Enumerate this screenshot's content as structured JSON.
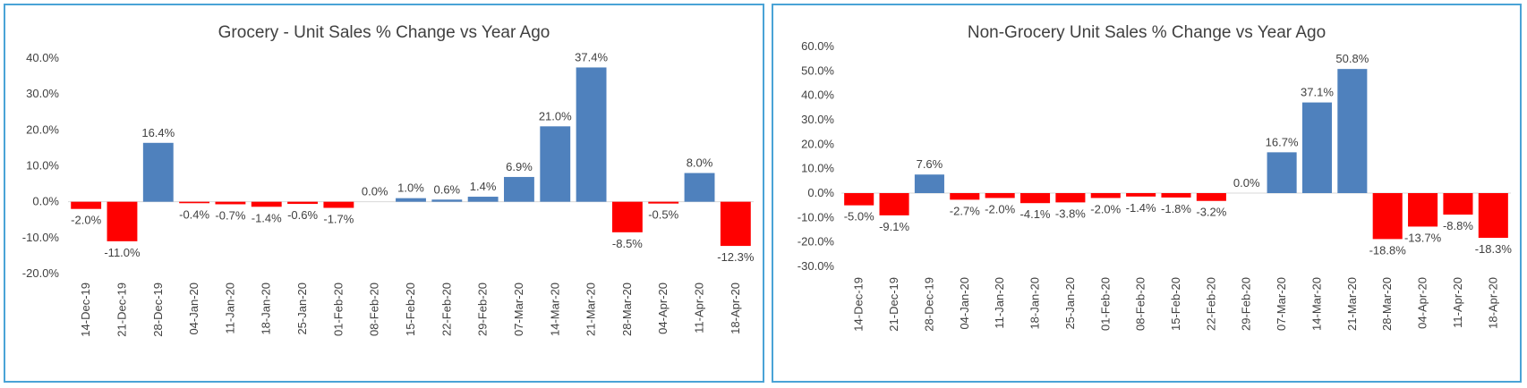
{
  "colors": {
    "positive": "#4f81bd",
    "negative": "#ff0000",
    "border": "#4aa3d6"
  },
  "chart_data": [
    {
      "type": "bar",
      "title": "Grocery - Unit Sales % Change vs Year Ago",
      "xlabel": "",
      "ylabel": "",
      "ylim": [
        -20,
        40
      ],
      "yticks": [
        -20,
        -10,
        0,
        10,
        20,
        30,
        40
      ],
      "grid": false,
      "categories": [
        "14-Dec-19",
        "21-Dec-19",
        "28-Dec-19",
        "04-Jan-20",
        "11-Jan-20",
        "18-Jan-20",
        "25-Jan-20",
        "01-Feb-20",
        "08-Feb-20",
        "15-Feb-20",
        "22-Feb-20",
        "29-Feb-20",
        "07-Mar-20",
        "14-Mar-20",
        "21-Mar-20",
        "28-Mar-20",
        "04-Apr-20",
        "11-Apr-20",
        "18-Apr-20"
      ],
      "values": [
        -2.0,
        -11.0,
        16.4,
        -0.4,
        -0.7,
        -1.4,
        -0.6,
        -1.7,
        0.0,
        1.0,
        0.6,
        1.4,
        6.9,
        21.0,
        37.4,
        -8.5,
        -0.5,
        8.0,
        -12.3
      ]
    },
    {
      "type": "bar",
      "title": "Non-Grocery Unit Sales % Change vs Year Ago",
      "xlabel": "",
      "ylabel": "",
      "ylim": [
        -30,
        60
      ],
      "yticks": [
        -30,
        -20,
        -10,
        0,
        10,
        20,
        30,
        40,
        50,
        60
      ],
      "grid": false,
      "categories": [
        "14-Dec-19",
        "21-Dec-19",
        "28-Dec-19",
        "04-Jan-20",
        "11-Jan-20",
        "18-Jan-20",
        "25-Jan-20",
        "01-Feb-20",
        "08-Feb-20",
        "15-Feb-20",
        "22-Feb-20",
        "29-Feb-20",
        "07-Mar-20",
        "14-Mar-20",
        "21-Mar-20",
        "28-Mar-20",
        "04-Apr-20",
        "11-Apr-20",
        "18-Apr-20"
      ],
      "values": [
        -5.0,
        -9.1,
        7.6,
        -2.7,
        -2.0,
        -4.1,
        -3.8,
        -2.0,
        -1.4,
        -1.8,
        -3.2,
        0.0,
        16.7,
        37.1,
        50.8,
        -18.8,
        -13.7,
        -8.8,
        -18.3
      ]
    }
  ]
}
